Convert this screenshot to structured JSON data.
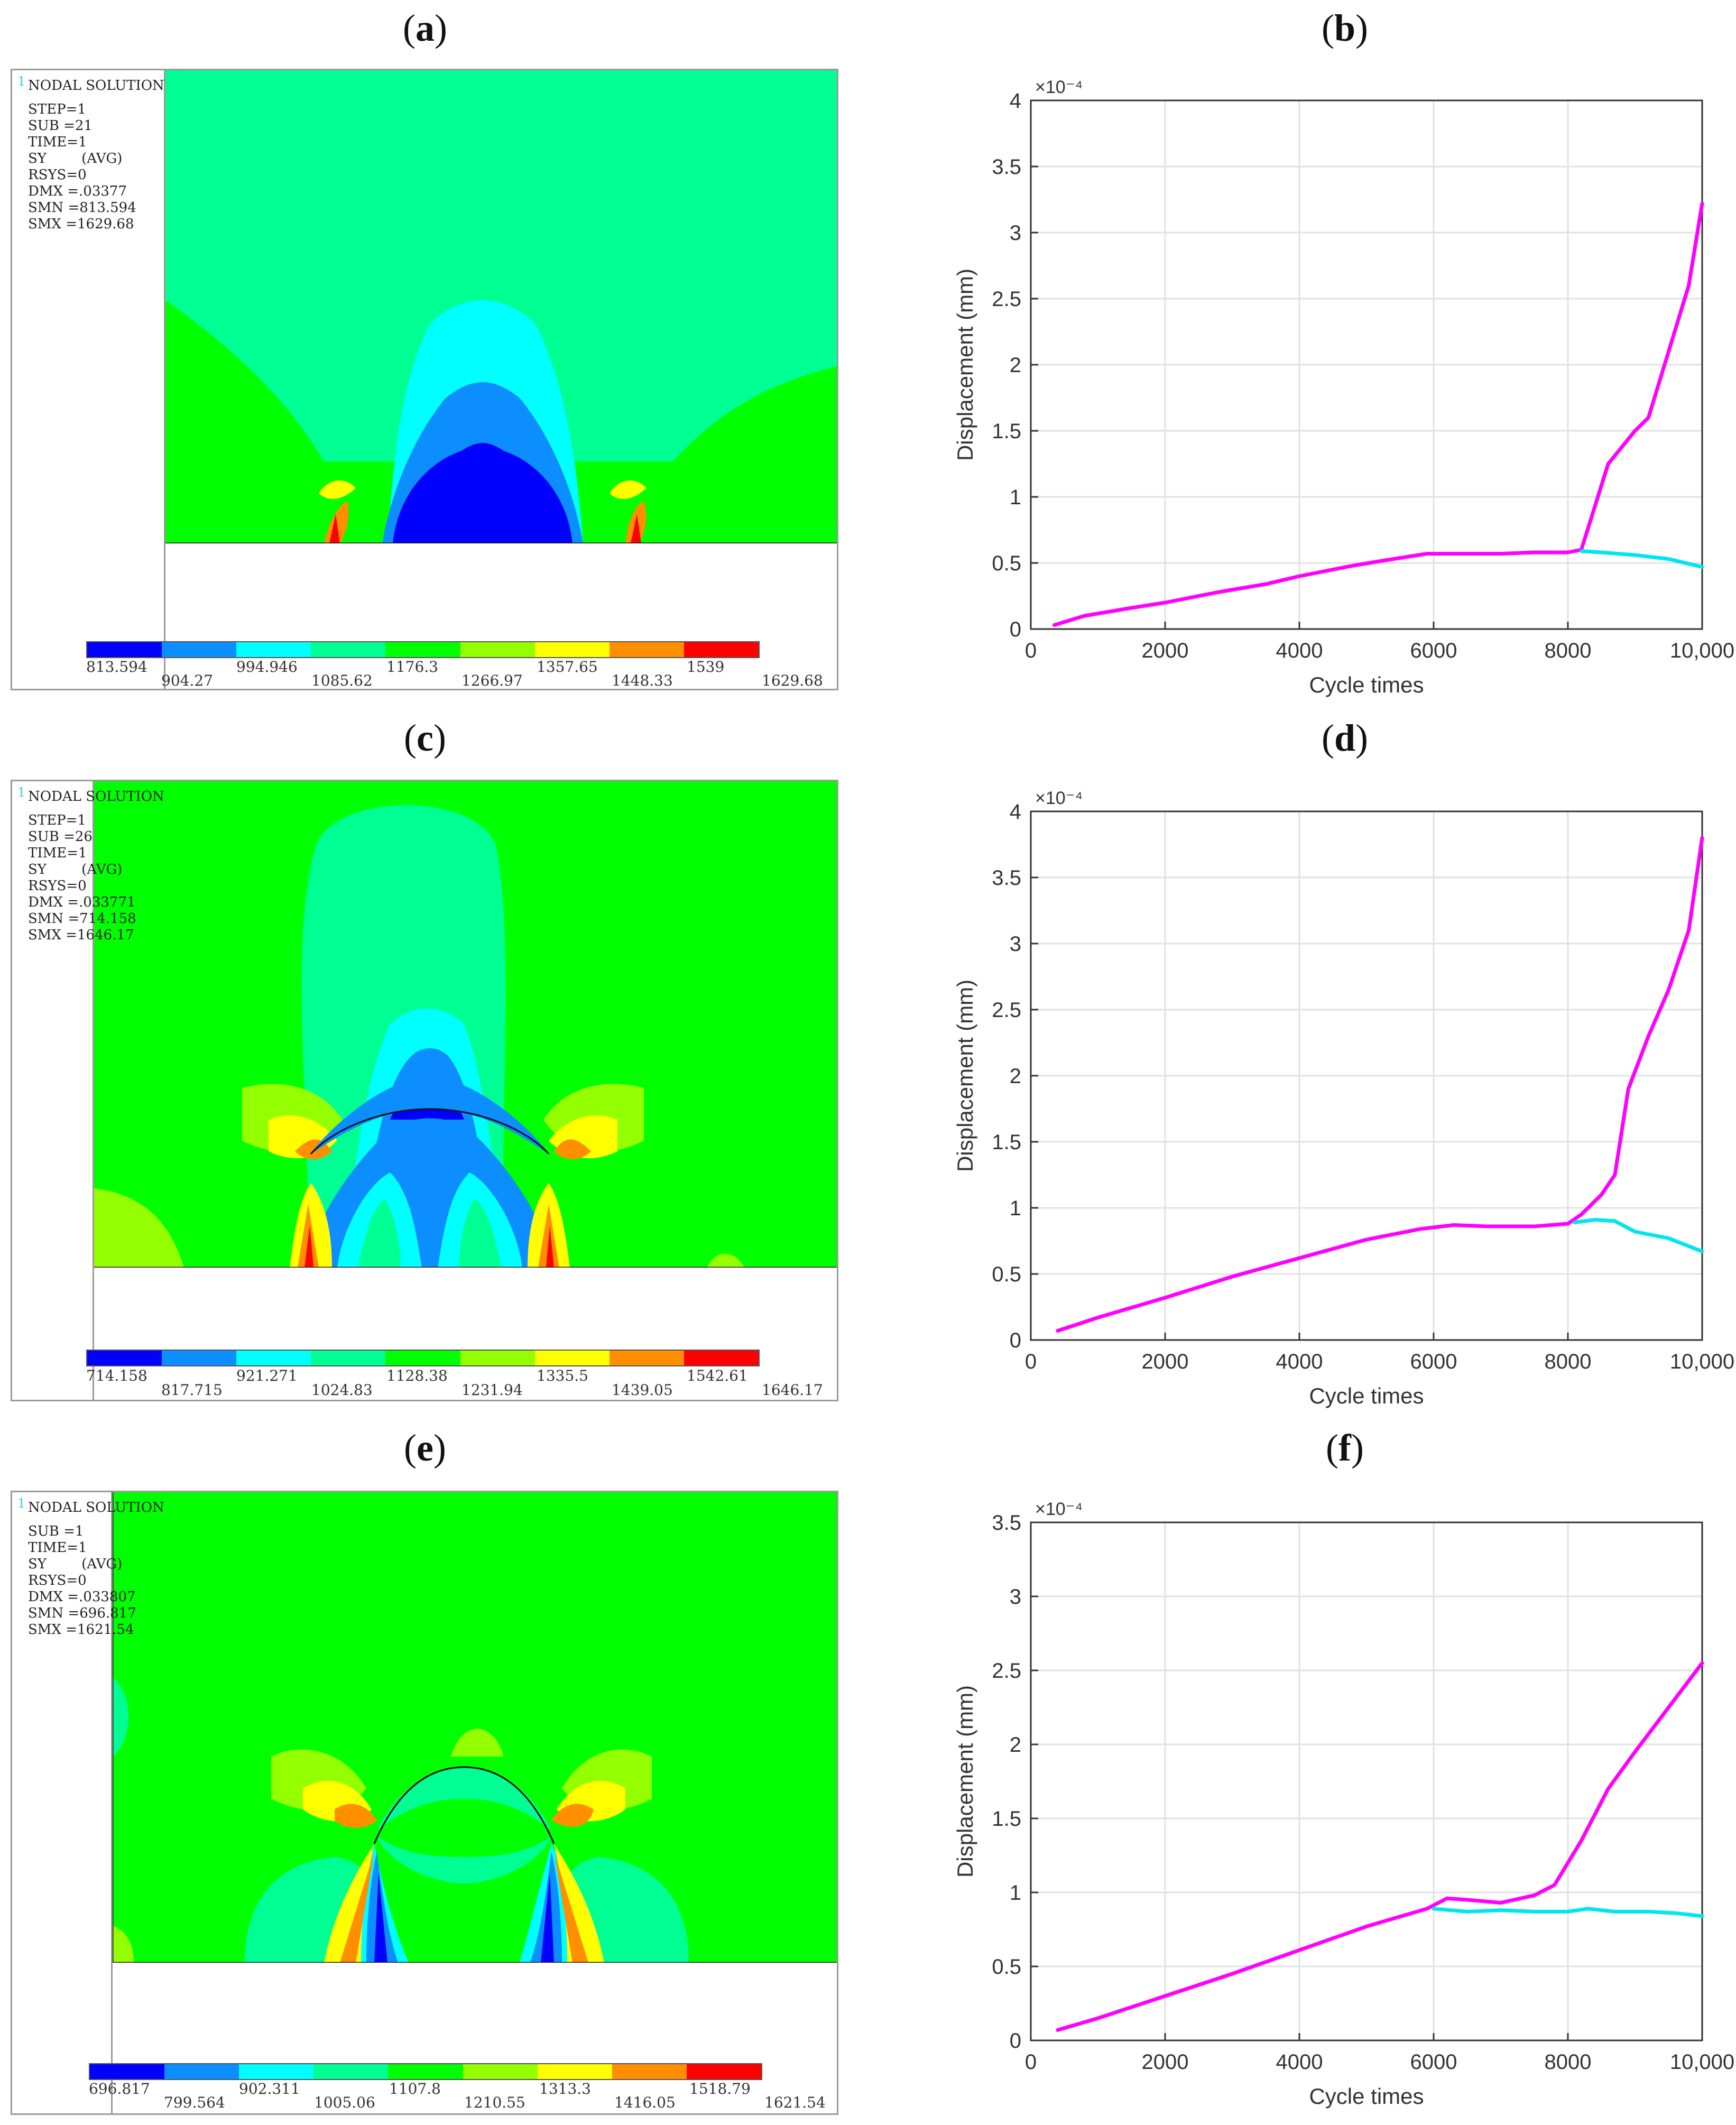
{
  "panel_labels": [
    "a",
    "b",
    "c",
    "d",
    "e",
    "f"
  ],
  "fea_panels": [
    {
      "id": "a",
      "title": "NODAL SOLUTION",
      "info_lines": [
        "STEP=1",
        "SUB =21",
        "TIME=1",
        "SY        (AVG)",
        "RSYS=0",
        "DMX =.03377",
        "SMN =813.594",
        "SMX =1629.68"
      ],
      "contour_labels": [
        "813.594",
        "904.27",
        "994.946",
        "1085.62",
        "1176.3",
        "1266.97",
        "1357.65",
        "1448.33",
        "1539",
        "1629.68"
      ]
    },
    {
      "id": "c",
      "title": "NODAL SOLUTION",
      "info_lines": [
        "STEP=1",
        "SUB =26",
        "TIME=1",
        "SY        (AVG)",
        "RSYS=0",
        "DMX =.033771",
        "SMN =714.158",
        "SMX =1646.17"
      ],
      "contour_labels": [
        "714.158",
        "817.715",
        "921.271",
        "1024.83",
        "1128.38",
        "1231.94",
        "1335.5",
        "1439.05",
        "1542.61",
        "1646.17"
      ]
    },
    {
      "id": "e",
      "title": "NODAL SOLUTION",
      "info_lines": [
        "SUB =1",
        "TIME=1",
        "SY        (AVG)",
        "RSYS=0",
        "DMX =.033807",
        "SMN =696.817",
        "SMX =1621.54"
      ],
      "contour_labels": [
        "696.817",
        "799.564",
        "902.311",
        "1005.06",
        "1107.8",
        "1210.55",
        "1313.3",
        "1416.05",
        "1518.79",
        "1621.54"
      ]
    }
  ],
  "legend_colors": [
    "#0000ff",
    "#0d8eff",
    "#00ffff",
    "#00ff93",
    "#00ff00",
    "#93ff00",
    "#ffff00",
    "#ff8e00",
    "#ff0000"
  ],
  "chart_data": [
    {
      "id": "b",
      "type": "line",
      "xlabel": "Cycle times",
      "ylabel": "Displacement (mm)",
      "exponent": "×10⁻⁴",
      "xlim": [
        0,
        10000
      ],
      "ylim": [
        0,
        4
      ],
      "xticks": [
        0,
        2000,
        4000,
        6000,
        8000,
        10000
      ],
      "xtick_labels": [
        "0",
        "2000",
        "4000",
        "6000",
        "8000",
        "10,000"
      ],
      "yticks": [
        0,
        0.5,
        1,
        1.5,
        2,
        2.5,
        3,
        3.5,
        4
      ],
      "ytick_labels": [
        "0",
        "0.5",
        "1",
        "1.5",
        "2",
        "2.5",
        "3",
        "3.5",
        "4"
      ],
      "grid": true,
      "series": [
        {
          "name": "magenta",
          "color": "#ff00ff",
          "x": [
            350,
            800,
            1500,
            2000,
            2800,
            3500,
            4000,
            4800,
            5400,
            5900,
            6500,
            7000,
            7500,
            8000,
            8200,
            8600,
            9000,
            9200,
            9500,
            9800,
            10000
          ],
          "y": [
            0.03,
            0.1,
            0.16,
            0.2,
            0.28,
            0.34,
            0.4,
            0.48,
            0.53,
            0.57,
            0.57,
            0.57,
            0.58,
            0.58,
            0.6,
            1.25,
            1.5,
            1.6,
            2.1,
            2.6,
            3.22
          ]
        },
        {
          "name": "cyan",
          "color": "#00e5ee",
          "x": [
            8200,
            8500,
            9000,
            9500,
            10000
          ],
          "y": [
            0.59,
            0.58,
            0.56,
            0.53,
            0.47
          ]
        }
      ]
    },
    {
      "id": "d",
      "type": "line",
      "xlabel": "Cycle times",
      "ylabel": "Displacement (mm)",
      "exponent": "×10⁻⁴",
      "xlim": [
        0,
        10000
      ],
      "ylim": [
        0,
        4
      ],
      "xticks": [
        0,
        2000,
        4000,
        6000,
        8000,
        10000
      ],
      "xtick_labels": [
        "0",
        "2000",
        "4000",
        "6000",
        "8000",
        "10,000"
      ],
      "yticks": [
        0,
        0.5,
        1,
        1.5,
        2,
        2.5,
        3,
        3.5,
        4
      ],
      "ytick_labels": [
        "0",
        "0.5",
        "1",
        "1.5",
        "2",
        "2.5",
        "3",
        "3.5",
        "4"
      ],
      "grid": true,
      "series": [
        {
          "name": "magenta",
          "color": "#ff00ff",
          "x": [
            400,
            1000,
            2000,
            3000,
            4000,
            5000,
            5800,
            6300,
            6800,
            7500,
            8000,
            8200,
            8500,
            8700,
            8900,
            9200,
            9500,
            9800,
            10000
          ],
          "y": [
            0.07,
            0.17,
            0.32,
            0.48,
            0.62,
            0.76,
            0.84,
            0.87,
            0.86,
            0.86,
            0.88,
            0.95,
            1.1,
            1.25,
            1.9,
            2.3,
            2.65,
            3.1,
            3.8
          ]
        },
        {
          "name": "cyan",
          "color": "#00e5ee",
          "x": [
            8100,
            8400,
            8700,
            9000,
            9500,
            10000
          ],
          "y": [
            0.89,
            0.91,
            0.9,
            0.82,
            0.77,
            0.67
          ]
        }
      ]
    },
    {
      "id": "f",
      "type": "line",
      "xlabel": "Cycle times",
      "ylabel": "Displacement (mm)",
      "exponent": "×10⁻⁴",
      "xlim": [
        0,
        10000
      ],
      "ylim": [
        0,
        3.5
      ],
      "xticks": [
        0,
        2000,
        4000,
        6000,
        8000,
        10000
      ],
      "xtick_labels": [
        "0",
        "2000",
        "4000",
        "6000",
        "8000",
        "10,000"
      ],
      "yticks": [
        0,
        0.5,
        1,
        1.5,
        2,
        2.5,
        3,
        3.5
      ],
      "ytick_labels": [
        "0",
        "0.5",
        "1",
        "1.5",
        "2",
        "2.5",
        "3",
        "3.5"
      ],
      "grid": true,
      "series": [
        {
          "name": "magenta",
          "color": "#ff00ff",
          "x": [
            400,
            1000,
            2000,
            3000,
            4000,
            5000,
            5900,
            6200,
            6500,
            7000,
            7500,
            7800,
            8200,
            8600,
            9000,
            9500,
            10000
          ],
          "y": [
            0.07,
            0.15,
            0.3,
            0.45,
            0.61,
            0.77,
            0.89,
            0.96,
            0.95,
            0.93,
            0.98,
            1.05,
            1.35,
            1.7,
            1.95,
            2.25,
            2.55
          ]
        },
        {
          "name": "cyan",
          "color": "#00e5ee",
          "x": [
            6000,
            6500,
            7000,
            7500,
            8000,
            8300,
            8700,
            9200,
            9600,
            10000
          ],
          "y": [
            0.89,
            0.87,
            0.88,
            0.87,
            0.87,
            0.89,
            0.87,
            0.87,
            0.86,
            0.84
          ]
        }
      ]
    }
  ]
}
